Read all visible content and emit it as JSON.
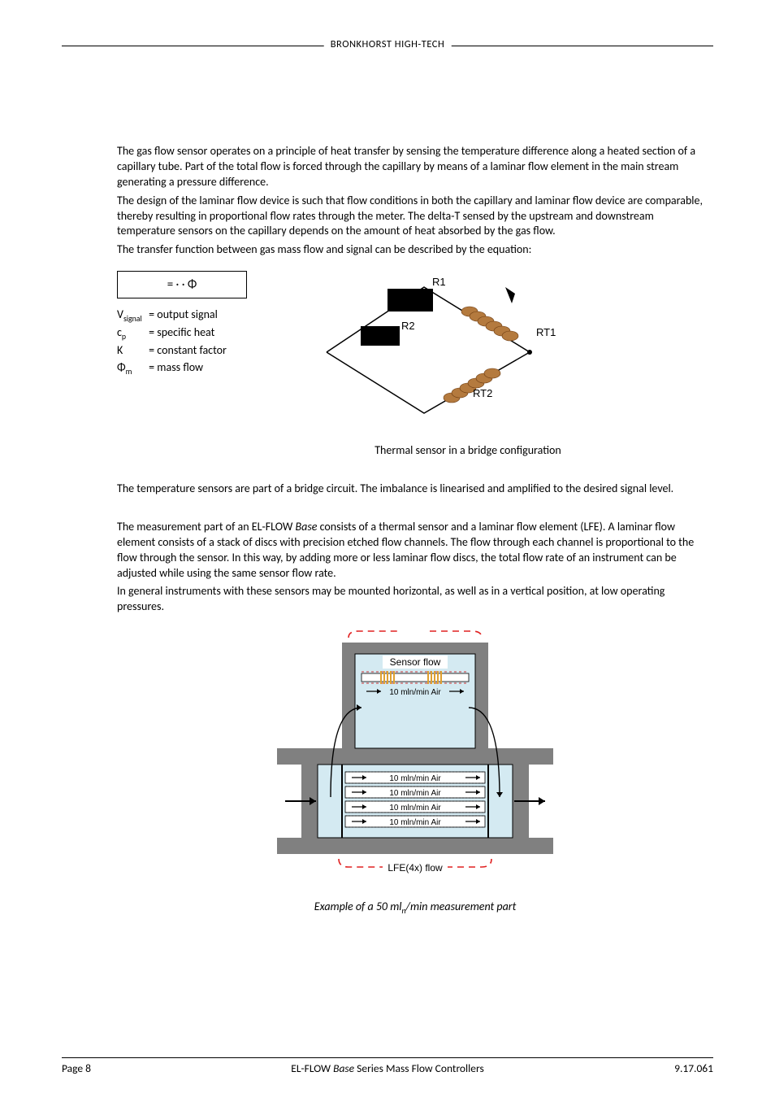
{
  "header": {
    "brand": "BRONKHORST HIGH-TECH"
  },
  "body": {
    "p1": "The gas flow sensor operates on a principle of heat transfer by sensing the temperature difference along a heated section of a capillary tube. Part of the total flow is forced through the capillary by means of a laminar flow element in the main stream generating a pressure difference.",
    "p2": "The design of the laminar flow device is such that flow conditions in both the capillary and laminar flow device are comparable, thereby resulting in proportional flow rates through the meter. The delta-T sensed by the upstream and downstream temperature sensors on the capillary depends on the amount of heat absorbed by the gas flow.",
    "p3": "The transfer function between gas mass flow and signal can be described by the equation:",
    "equation": "=   ·    · Φ",
    "defs": {
      "v_sym": "V",
      "v_sub": "signal",
      "v_txt": "= output signal",
      "c_sym": "c",
      "c_sub": "p",
      "c_txt": "= specific heat",
      "k_sym": "K",
      "k_txt": "= constant factor",
      "phi_sym": "Φ",
      "phi_sub": "m",
      "phi_txt": "= mass flow"
    },
    "diagram1": {
      "labels": {
        "r1": "R1",
        "r2": "R2",
        "rt1": "RT1",
        "rt2": "RT2"
      },
      "colors": {
        "block": "#000000",
        "coil": "#b47a3e",
        "line": "#000000",
        "bg": "#ffffff"
      }
    },
    "caption1": "Thermal sensor in a bridge configuration",
    "p4": "The temperature sensors are part of a bridge circuit. The imbalance is linearised and amplified to the desired signal level.",
    "p5a": "The measurement part of an EL-FLOW ",
    "p5b": "Base",
    "p5c": " consists of a thermal sensor and a laminar flow element (LFE). A laminar flow element consists of a stack of discs with precision etched flow channels. The flow through each channel is proportional to the flow through the sensor. In this way, by adding more or less laminar flow discs, the total flow rate of an instrument can be adjusted while using the same sensor flow rate.",
    "p6": "In general instruments with these sensors may be mounted horizontal, as well as in a vertical position, at low operating pressures.",
    "diagram2": {
      "sensor_label": "Sensor flow",
      "channel_label": "10 mln/min Air",
      "channel_count": 4,
      "lfe_label": "LFE(4x) flow",
      "colors": {
        "body": "#808080",
        "chamber_fill": "#d4eaf2",
        "line": "#000000",
        "bracket": "#e02020",
        "coil": "#e0a030",
        "dashed": "#cc3333"
      }
    },
    "caption2_a": "Example of a 50 ml",
    "caption2_b": "n",
    "caption2_c": "/min measurement part"
  },
  "footer": {
    "left": "Page 8",
    "mid_a": "EL-FLOW ",
    "mid_b": "Base",
    "mid_c": " Series Mass Flow Controllers",
    "right": "9.17.061"
  }
}
